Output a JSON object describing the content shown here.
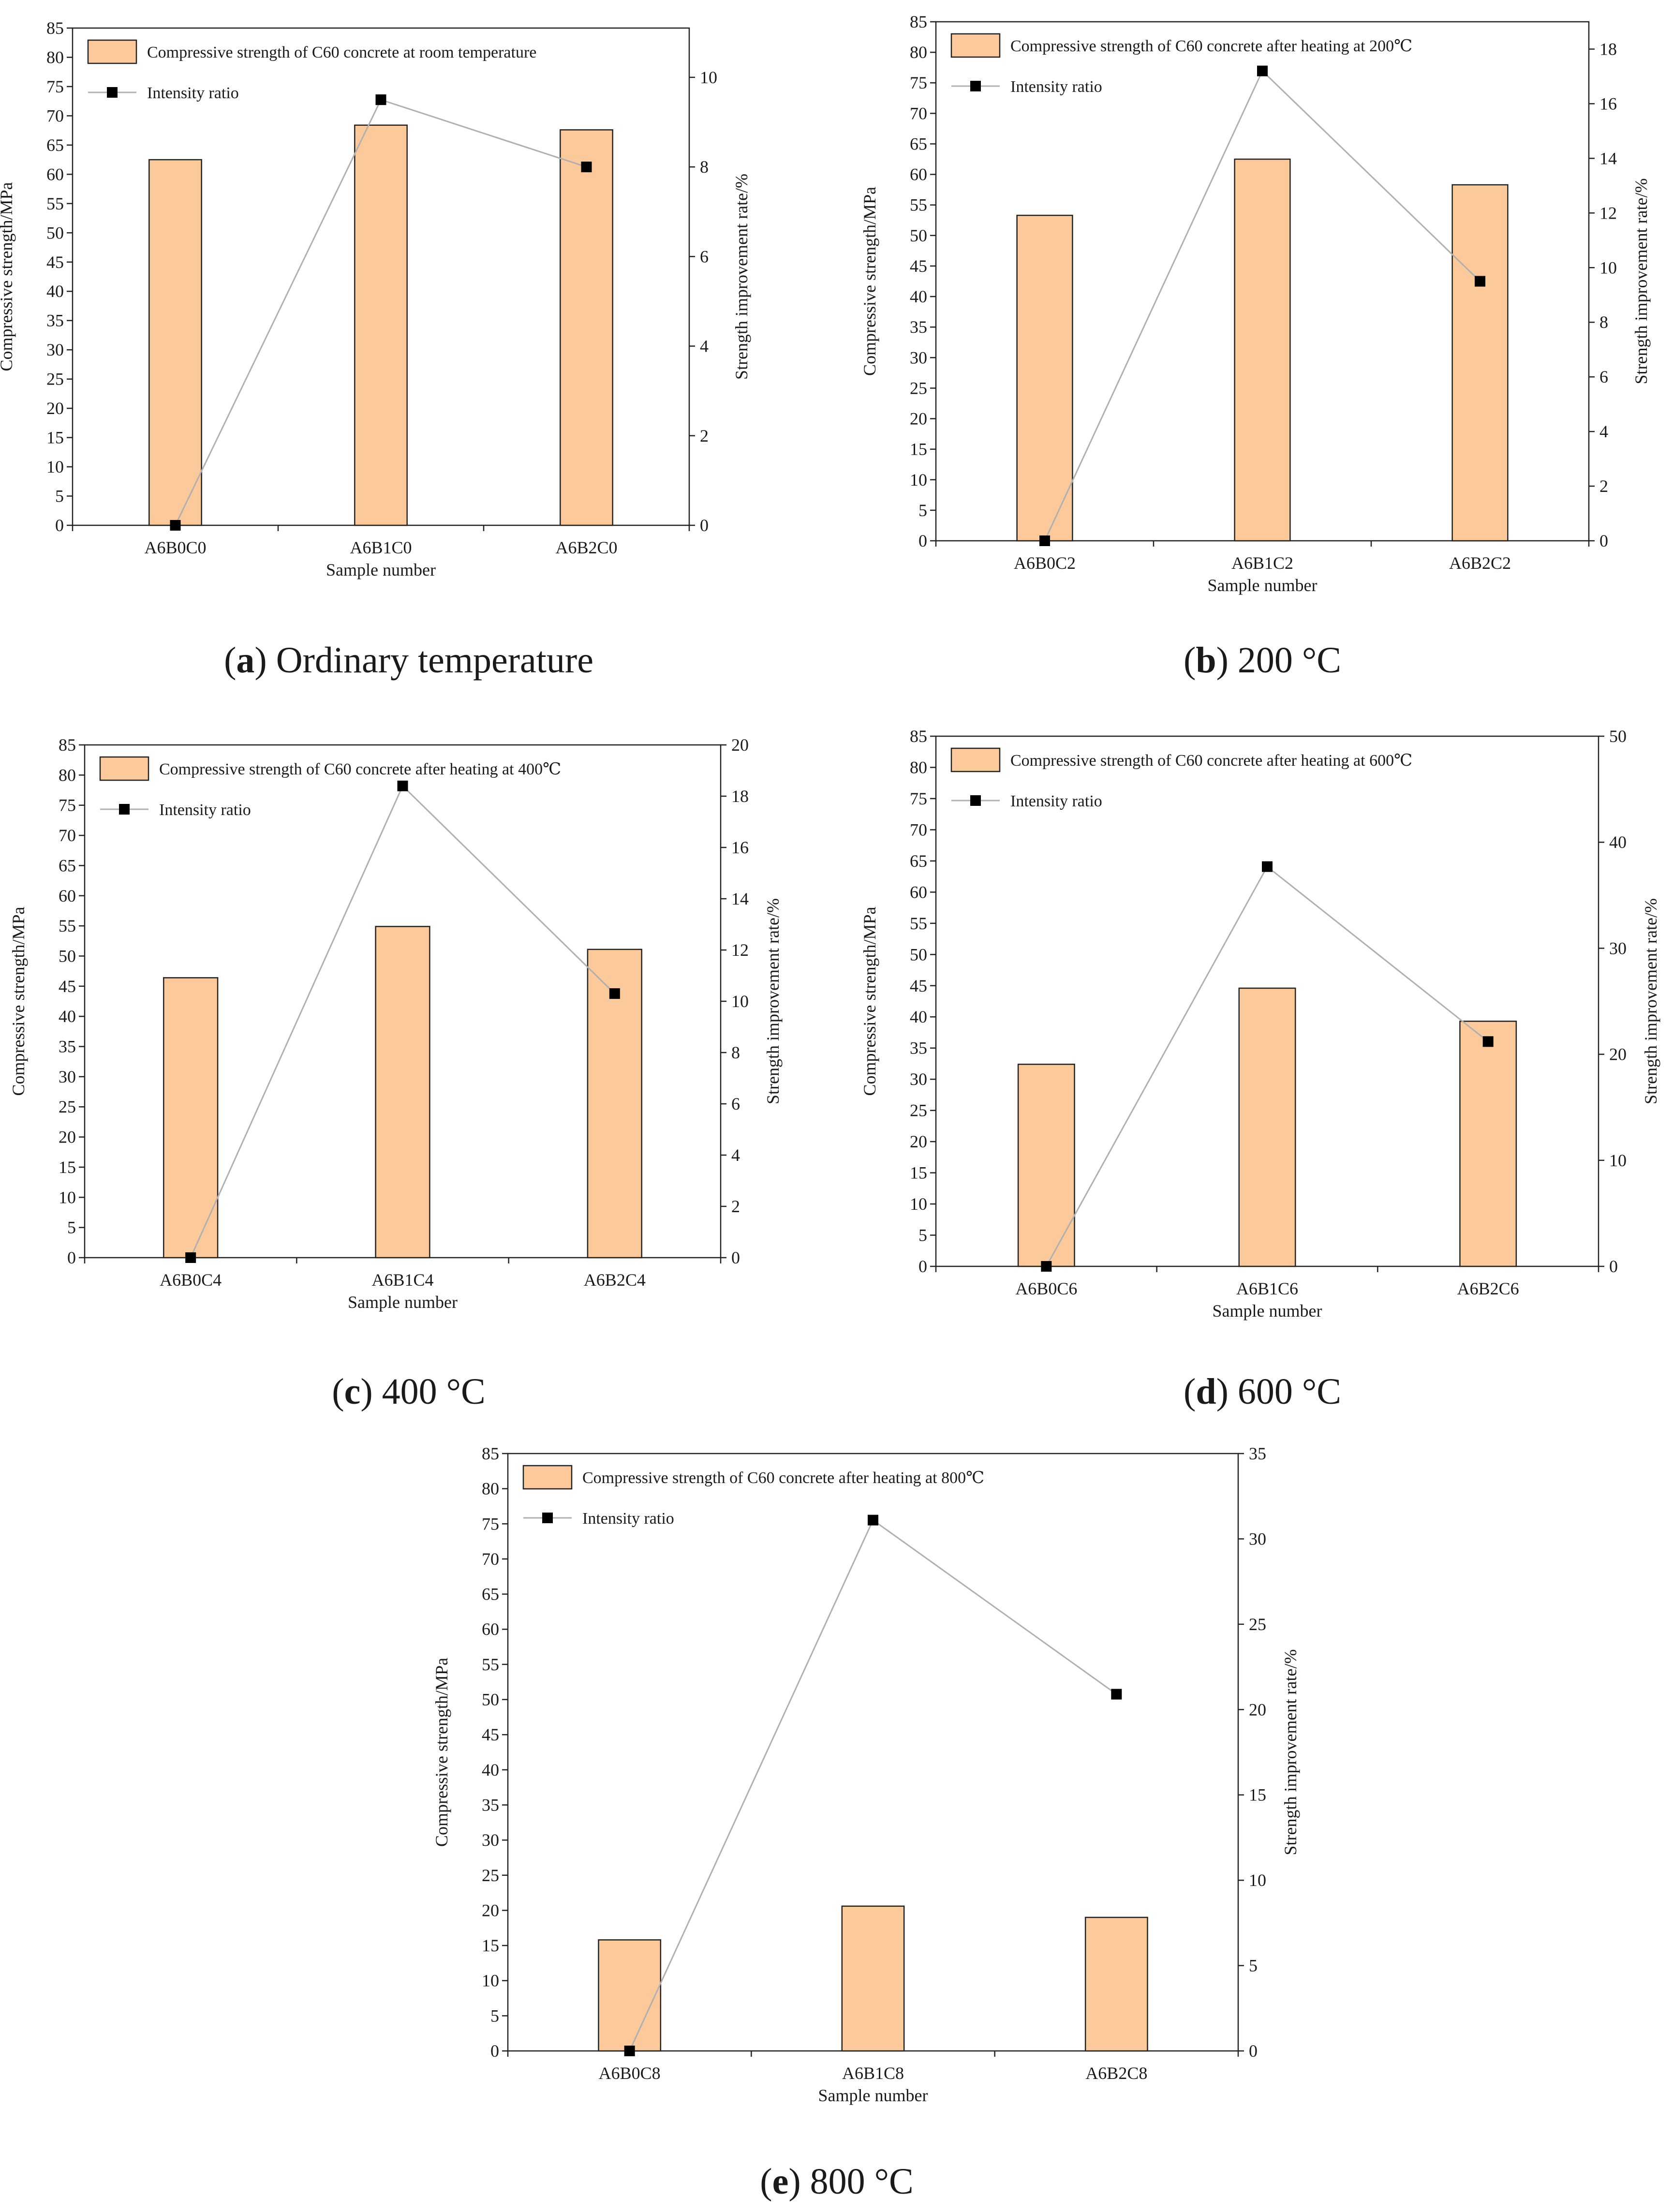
{
  "chart_data": [
    {
      "type": "bar",
      "caption_letter": "a",
      "caption_text": "Ordinary temperature",
      "categories": [
        "A6B0C0",
        "A6B1C0",
        "A6B2C0"
      ],
      "series": [
        {
          "name": "Compressive strength of C60 concrete at room temperature",
          "axis": "left",
          "kind": "bar",
          "color": "#fcc99b",
          "values": [
            62.5,
            68.4,
            67.6
          ]
        },
        {
          "name": "Intensity ratio",
          "axis": "right",
          "kind": "line",
          "color": "#b0b0b0",
          "values": [
            0,
            9.5,
            8.0
          ]
        }
      ],
      "xlabel": "Sample number",
      "ylabel": "Compressive strength/MPa",
      "y2label": "Strength improvement rate/%",
      "ylim": [
        0,
        85
      ],
      "y_ticks": [
        0,
        5,
        10,
        15,
        20,
        25,
        30,
        35,
        40,
        45,
        50,
        55,
        60,
        65,
        70,
        75,
        80,
        85
      ],
      "y2lim": [
        0,
        11.1
      ],
      "y2_ticks": [
        0,
        2,
        4,
        6,
        8,
        10
      ],
      "legend_position": "top-left",
      "y_tick_labels": [
        "0",
        "5",
        "10",
        "15",
        "20",
        "25",
        "30",
        "35",
        "40",
        "45",
        "50",
        "55",
        "60",
        "65",
        "70",
        "75",
        "80",
        "85"
      ],
      "y2_tick_labels": [
        "0",
        "2",
        "4",
        "6",
        "8",
        "10"
      ]
    },
    {
      "type": "bar",
      "caption_letter": "b",
      "caption_text": "200 °C",
      "categories": [
        "A6B0C2",
        "A6B1C2",
        "A6B2C2"
      ],
      "series": [
        {
          "name": "Compressive strength of C60 concrete after heating at 200℃",
          "axis": "left",
          "kind": "bar",
          "color": "#fcc99b",
          "values": [
            53.3,
            62.5,
            58.3
          ]
        },
        {
          "name": "Intensity ratio",
          "axis": "right",
          "kind": "line",
          "color": "#b0b0b0",
          "values": [
            0,
            17.2,
            9.5
          ]
        }
      ],
      "xlabel": "Sample number",
      "ylabel": "Compressive strength/MPa",
      "y2label": "Strength improvement rate/%",
      "ylim": [
        0,
        85
      ],
      "y_ticks": [
        0,
        5,
        10,
        15,
        20,
        25,
        30,
        35,
        40,
        45,
        50,
        55,
        60,
        65,
        70,
        75,
        80,
        85
      ],
      "y2lim": [
        0,
        19
      ],
      "y2_ticks": [
        0,
        2,
        4,
        6,
        8,
        10,
        12,
        14,
        16,
        18
      ],
      "legend_position": "top-left",
      "y_tick_labels": [
        "0",
        "5",
        "10",
        "15",
        "20",
        "25",
        "30",
        "35",
        "40",
        "45",
        "50",
        "55",
        "60",
        "65",
        "70",
        "75",
        "80",
        "85"
      ],
      "y2_tick_labels": [
        "0",
        "2",
        "4",
        "6",
        "8",
        "10",
        "12",
        "14",
        "16",
        "18"
      ]
    },
    {
      "type": "bar",
      "caption_letter": "c",
      "caption_text": "400 °C",
      "categories": [
        "A6B0C4",
        "A6B1C4",
        "A6B2C4"
      ],
      "series": [
        {
          "name": "Compressive strength of C60 concrete after heating at 400℃",
          "axis": "left",
          "kind": "bar",
          "color": "#fcc99b",
          "values": [
            46.4,
            54.9,
            51.1
          ]
        },
        {
          "name": "Intensity ratio",
          "axis": "right",
          "kind": "line",
          "color": "#b0b0b0",
          "values": [
            0,
            18.4,
            10.3
          ]
        }
      ],
      "xlabel": "Sample number",
      "ylabel": "Compressive strength/MPa",
      "y2label": "Strength improvement rate/%",
      "ylim": [
        0,
        85
      ],
      "y_ticks": [
        0,
        5,
        10,
        15,
        20,
        25,
        30,
        35,
        40,
        45,
        50,
        55,
        60,
        65,
        70,
        75,
        80,
        85
      ],
      "y2lim": [
        0,
        20
      ],
      "y2_ticks": [
        0,
        2,
        4,
        6,
        8,
        10,
        12,
        14,
        16,
        18,
        20
      ],
      "legend_position": "top-left",
      "y_tick_labels": [
        "0",
        "5",
        "10",
        "15",
        "20",
        "25",
        "30",
        "35",
        "40",
        "45",
        "50",
        "55",
        "60",
        "65",
        "70",
        "75",
        "80",
        "85"
      ],
      "y2_tick_labels": [
        "0",
        "2",
        "4",
        "6",
        "8",
        "10",
        "12",
        "14",
        "16",
        "18",
        "20"
      ]
    },
    {
      "type": "bar",
      "caption_letter": "d",
      "caption_text": "600 °C",
      "categories": [
        "A6B0C6",
        "A6B1C6",
        "A6B2C6"
      ],
      "series": [
        {
          "name": "Compressive strength of C60 concrete after heating at 600℃",
          "axis": "left",
          "kind": "bar",
          "color": "#fcc99b",
          "values": [
            32.4,
            44.6,
            39.3
          ]
        },
        {
          "name": "Intensity ratio",
          "axis": "right",
          "kind": "line",
          "color": "#b0b0b0",
          "values": [
            0,
            37.7,
            21.2
          ]
        }
      ],
      "xlabel": "Sample number",
      "ylabel": "Compressive strength/MPa",
      "y2label": "Strength improvement rate/%",
      "ylim": [
        0,
        85
      ],
      "y_ticks": [
        0,
        5,
        10,
        15,
        20,
        25,
        30,
        35,
        40,
        45,
        50,
        55,
        60,
        65,
        70,
        75,
        80,
        85
      ],
      "y2lim": [
        0,
        50
      ],
      "y2_ticks": [
        0,
        10,
        20,
        30,
        40,
        50
      ],
      "legend_position": "top-left",
      "y_tick_labels": [
        "0",
        "5",
        "10",
        "15",
        "20",
        "25",
        "30",
        "35",
        "40",
        "45",
        "50",
        "55",
        "60",
        "65",
        "70",
        "75",
        "80",
        "85"
      ],
      "y2_tick_labels": [
        "0",
        "10",
        "20",
        "30",
        "40",
        "50"
      ]
    },
    {
      "type": "bar",
      "caption_letter": "e",
      "caption_text": "800 °C",
      "categories": [
        "A6B0C8",
        "A6B1C8",
        "A6B2C8"
      ],
      "series": [
        {
          "name": "Compressive strength of C60 concrete after heating at 800℃",
          "axis": "left",
          "kind": "bar",
          "color": "#fcc99b",
          "values": [
            15.8,
            20.6,
            19.0
          ]
        },
        {
          "name": "Intensity ratio",
          "axis": "right",
          "kind": "line",
          "color": "#b0b0b0",
          "values": [
            0,
            31.1,
            20.9
          ]
        }
      ],
      "xlabel": "Sample number",
      "ylabel": "Compressive strength/MPa",
      "y2label": "Strength improvement rate/%",
      "ylim": [
        0,
        85
      ],
      "y_ticks": [
        0,
        5,
        10,
        15,
        20,
        25,
        30,
        35,
        40,
        45,
        50,
        55,
        60,
        65,
        70,
        75,
        80,
        85
      ],
      "y2lim": [
        0,
        35
      ],
      "y2_ticks": [
        0,
        5,
        10,
        15,
        20,
        25,
        30,
        35
      ],
      "legend_position": "top-left",
      "y_tick_labels": [
        "0",
        "5",
        "10",
        "15",
        "20",
        "25",
        "30",
        "35",
        "40",
        "45",
        "50",
        "55",
        "60",
        "65",
        "70",
        "75",
        "80",
        "85"
      ],
      "y2_tick_labels": [
        "0",
        "5",
        "10",
        "15",
        "20",
        "25",
        "30",
        "35"
      ]
    }
  ]
}
